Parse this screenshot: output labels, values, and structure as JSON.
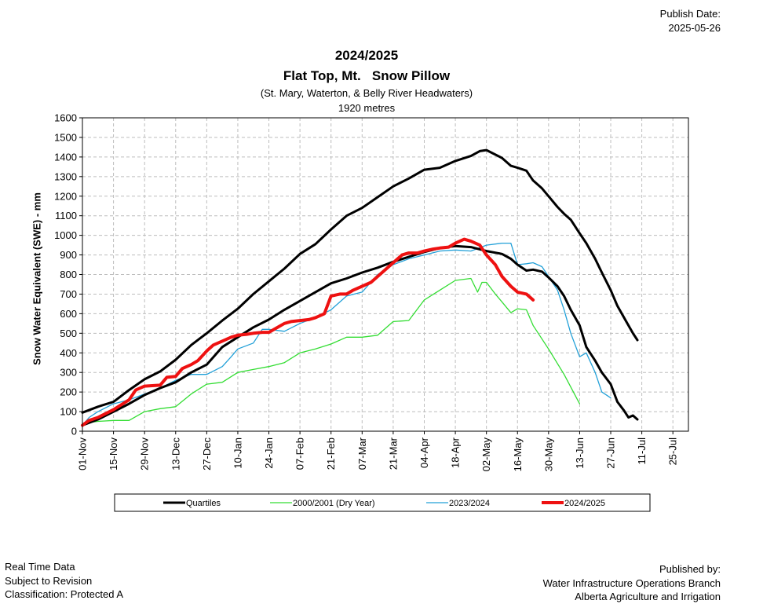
{
  "publish": {
    "label": "Publish Date:",
    "date": "2025-05-26"
  },
  "footer": {
    "left": [
      "Real Time Data",
      "Subject to Revision",
      " Classification: Protected A"
    ],
    "right": [
      "Published by:",
      "Water Infrastructure Operations Branch",
      "Alberta Agriculture and Irrigation"
    ]
  },
  "colors": {
    "quartiles": "#000000",
    "dry_year": "#33dd33",
    "last_year": "#22a0d8",
    "current": "#ee1111",
    "grid": "#bdbdbd"
  },
  "chart_data": {
    "type": "line",
    "title": "2024/2025",
    "subtitle": "Flat Top, Mt.   Snow Pillow",
    "subtitle2": "(St. Mary, Waterton, & Belly River Headwaters)",
    "subtitle3": "1920 metres",
    "xlabel": "",
    "ylabel": "Snow Water Equivalent (SWE)  -  mm",
    "ylim": [
      0,
      1600
    ],
    "yticks": [
      0,
      100,
      200,
      300,
      400,
      500,
      600,
      700,
      800,
      900,
      1000,
      1100,
      1200,
      1300,
      1400,
      1500,
      1600
    ],
    "xlim": [
      "01-Nov",
      "01-Aug"
    ],
    "xticks": [
      "01-Nov",
      "15-Nov",
      "29-Nov",
      "13-Dec",
      "27-Dec",
      "10-Jan",
      "24-Jan",
      "07-Feb",
      "21-Feb",
      "07-Mar",
      "21-Mar",
      "04-Apr",
      "18-Apr",
      "02-May",
      "16-May",
      "30-May",
      "13-Jun",
      "27-Jun",
      "11-Jul",
      "25-Jul"
    ],
    "grid": true,
    "legend_position": "bottom",
    "series": [
      {
        "name": "Quartiles",
        "style": "quartile",
        "x": [
          "01-Nov",
          "08-Nov",
          "15-Nov",
          "22-Nov",
          "29-Nov",
          "06-Dec",
          "13-Dec",
          "20-Dec",
          "27-Dec",
          "03-Jan",
          "10-Jan",
          "17-Jan",
          "24-Jan",
          "31-Jan",
          "07-Feb",
          "14-Feb",
          "21-Feb",
          "28-Feb",
          "07-Mar",
          "14-Mar",
          "21-Mar",
          "28-Mar",
          "04-Apr",
          "11-Apr",
          "18-Apr",
          "25-Apr",
          "29-Apr",
          "02-May",
          "09-May",
          "13-May",
          "16-May",
          "20-May",
          "23-May",
          "27-May",
          "30-May",
          "03-Jun",
          "06-Jun",
          "09-Jun",
          "13-Jun",
          "16-Jun",
          "20-Jun",
          "23-Jun",
          "27-Jun",
          "30-Jun",
          "04-Jul",
          "07-Jul",
          "09-Jul"
        ],
        "values": [
          95,
          125,
          150,
          210,
          265,
          305,
          365,
          440,
          500,
          565,
          625,
          700,
          765,
          830,
          905,
          955,
          1030,
          1100,
          1140,
          1195,
          1250,
          1290,
          1335,
          1345,
          1380,
          1405,
          1430,
          1435,
          1395,
          1355,
          1345,
          1330,
          1280,
          1240,
          1200,
          1145,
          1110,
          1080,
          1010,
          960,
          880,
          810,
          720,
          640,
          560,
          500,
          465
        ]
      },
      {
        "name": "Quartiles",
        "style": "quartile",
        "x": [
          "01-Nov",
          "08-Nov",
          "15-Nov",
          "22-Nov",
          "29-Nov",
          "06-Dec",
          "13-Dec",
          "20-Dec",
          "27-Dec",
          "03-Jan",
          "10-Jan",
          "17-Jan",
          "24-Jan",
          "31-Jan",
          "07-Feb",
          "14-Feb",
          "21-Feb",
          "28-Feb",
          "07-Mar",
          "14-Mar",
          "21-Mar",
          "28-Mar",
          "04-Apr",
          "11-Apr",
          "18-Apr",
          "25-Apr",
          "02-May",
          "09-May",
          "13-May",
          "16-May",
          "20-May",
          "23-May",
          "27-May",
          "30-May",
          "03-Jun",
          "06-Jun",
          "09-Jun",
          "13-Jun",
          "16-Jun",
          "20-Jun",
          "23-Jun",
          "27-Jun",
          "30-Jun",
          "03-Jul",
          "05-Jul",
          "07-Jul",
          "09-Jul"
        ],
        "values": [
          30,
          60,
          100,
          140,
          185,
          220,
          250,
          300,
          340,
          430,
          480,
          530,
          570,
          620,
          665,
          710,
          755,
          780,
          810,
          835,
          865,
          890,
          915,
          935,
          945,
          940,
          920,
          905,
          880,
          850,
          820,
          825,
          815,
          785,
          740,
          690,
          620,
          540,
          430,
          360,
          300,
          240,
          150,
          105,
          70,
          80,
          60
        ]
      },
      {
        "name": "2000/2001  (Dry Year)",
        "style": "dry",
        "x": [
          "01-Nov",
          "08-Nov",
          "15-Nov",
          "22-Nov",
          "29-Nov",
          "06-Dec",
          "13-Dec",
          "20-Dec",
          "27-Dec",
          "03-Jan",
          "10-Jan",
          "17-Jan",
          "24-Jan",
          "31-Jan",
          "07-Feb",
          "14-Feb",
          "21-Feb",
          "28-Feb",
          "07-Mar",
          "14-Mar",
          "21-Mar",
          "28-Mar",
          "04-Apr",
          "11-Apr",
          "18-Apr",
          "25-Apr",
          "28-Apr",
          "30-Apr",
          "02-May",
          "06-May",
          "09-May",
          "13-May",
          "16-May",
          "20-May",
          "23-May",
          "30-May",
          "06-Jun",
          "13-Jun"
        ],
        "values": [
          40,
          50,
          55,
          55,
          100,
          115,
          125,
          190,
          240,
          250,
          300,
          315,
          330,
          350,
          400,
          420,
          445,
          480,
          480,
          490,
          560,
          565,
          670,
          720,
          770,
          780,
          710,
          760,
          760,
          700,
          660,
          605,
          625,
          620,
          540,
          420,
          290,
          140
        ]
      },
      {
        "name": "2023/2024",
        "style": "last",
        "x": [
          "01-Nov",
          "04-Nov",
          "08-Nov",
          "15-Nov",
          "22-Nov",
          "29-Nov",
          "06-Dec",
          "13-Dec",
          "20-Dec",
          "27-Dec",
          "03-Jan",
          "07-Jan",
          "10-Jan",
          "17-Jan",
          "21-Jan",
          "24-Jan",
          "31-Jan",
          "07-Feb",
          "14-Feb",
          "21-Feb",
          "28-Feb",
          "07-Mar",
          "14-Mar",
          "21-Mar",
          "28-Mar",
          "04-Apr",
          "11-Apr",
          "18-Apr",
          "25-Apr",
          "02-May",
          "09-May",
          "13-May",
          "16-May",
          "20-May",
          "23-May",
          "27-May",
          "30-May",
          "03-Jun",
          "06-Jun",
          "09-Jun",
          "13-Jun",
          "16-Jun",
          "20-Jun",
          "23-Jun",
          "27-Jun"
        ],
        "values": [
          30,
          70,
          100,
          140,
          160,
          190,
          220,
          260,
          290,
          290,
          330,
          380,
          420,
          450,
          520,
          520,
          510,
          550,
          580,
          620,
          690,
          710,
          800,
          850,
          880,
          900,
          920,
          925,
          920,
          950,
          960,
          960,
          850,
          855,
          860,
          840,
          790,
          720,
          620,
          500,
          380,
          400,
          300,
          200,
          170
        ]
      },
      {
        "name": "2024/2025",
        "style": "current",
        "x": [
          "01-Nov",
          "04-Nov",
          "08-Nov",
          "15-Nov",
          "22-Nov",
          "25-Nov",
          "29-Nov",
          "06-Dec",
          "09-Dec",
          "13-Dec",
          "16-Dec",
          "20-Dec",
          "23-Dec",
          "27-Dec",
          "30-Dec",
          "03-Jan",
          "07-Jan",
          "10-Jan",
          "14-Jan",
          "17-Jan",
          "21-Jan",
          "24-Jan",
          "31-Jan",
          "03-Feb",
          "07-Feb",
          "11-Feb",
          "14-Feb",
          "18-Feb",
          "21-Feb",
          "25-Feb",
          "28-Feb",
          "03-Mar",
          "07-Mar",
          "11-Mar",
          "14-Mar",
          "18-Mar",
          "21-Mar",
          "25-Mar",
          "28-Mar",
          "01-Apr",
          "04-Apr",
          "08-Apr",
          "11-Apr",
          "15-Apr",
          "18-Apr",
          "22-Apr",
          "25-Apr",
          "29-Apr",
          "02-May",
          "06-May",
          "09-May",
          "13-May",
          "16-May",
          "20-May",
          "23-May"
        ],
        "values": [
          30,
          55,
          70,
          110,
          160,
          210,
          230,
          235,
          275,
          280,
          320,
          340,
          360,
          410,
          440,
          460,
          480,
          490,
          495,
          500,
          505,
          505,
          550,
          560,
          565,
          570,
          580,
          600,
          690,
          700,
          700,
          720,
          740,
          760,
          790,
          830,
          860,
          900,
          910,
          910,
          920,
          930,
          935,
          940,
          960,
          980,
          970,
          950,
          900,
          850,
          790,
          740,
          710,
          700,
          670
        ]
      }
    ]
  },
  "legend": [
    {
      "label": "Quartiles",
      "style": "quartile"
    },
    {
      "label": "2000/2001  (Dry Year)",
      "style": "dry"
    },
    {
      "label": "2023/2024",
      "style": "last"
    },
    {
      "label": "2024/2025",
      "style": "current"
    }
  ]
}
